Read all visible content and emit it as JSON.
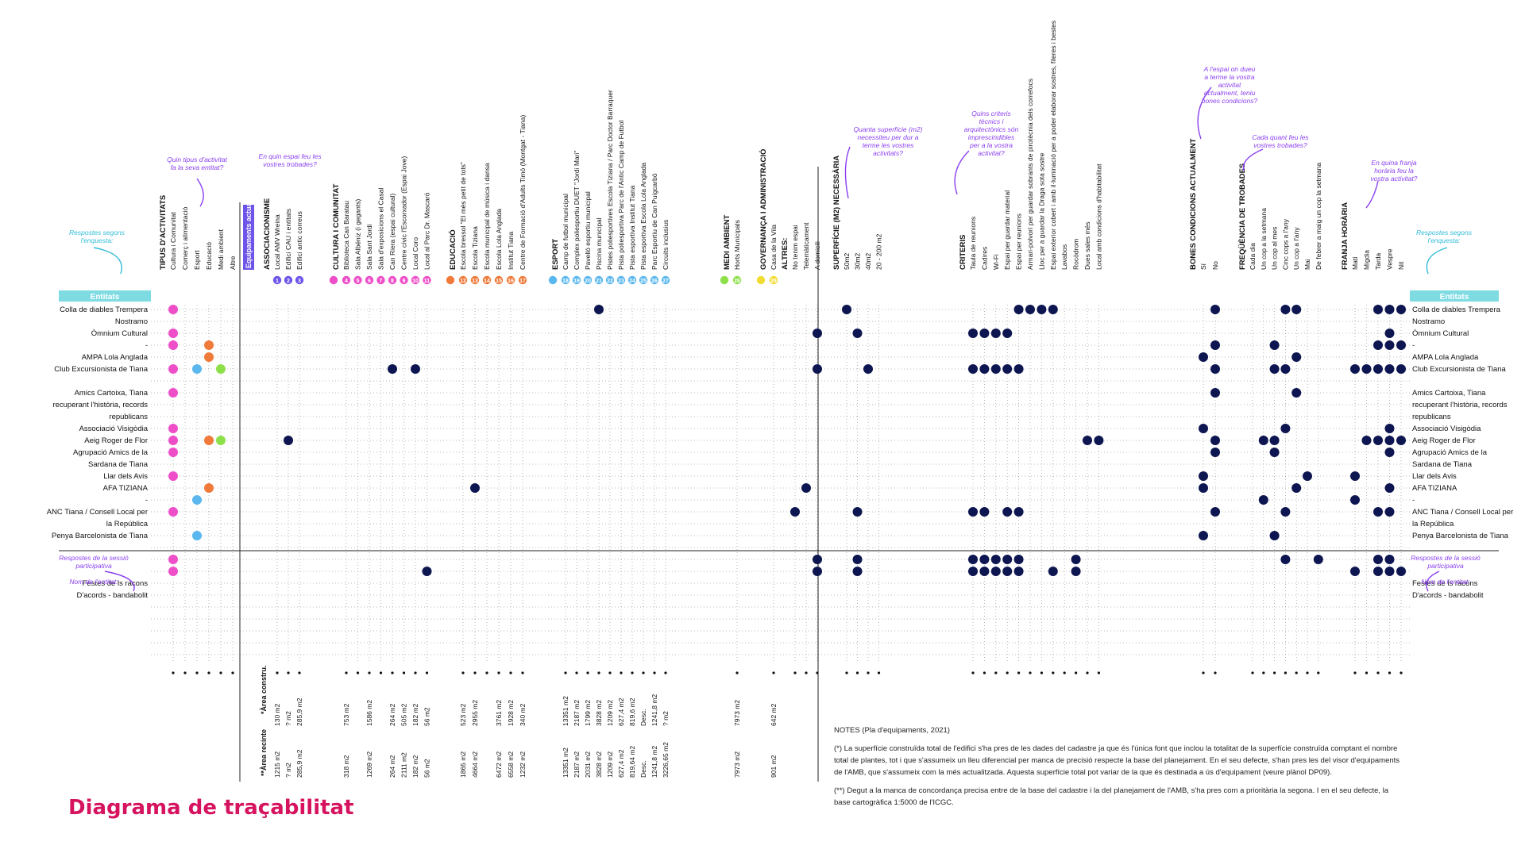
{
  "title": "Diagrama de traçabilitat",
  "colors": {
    "title": "#d6135f",
    "annotation": "#8a3ff0",
    "annotation_cyan": "#30bcd6",
    "entitats_band": "#7edbe2",
    "dot": "#0d1650",
    "pink": "#ee4fc8",
    "orange": "#f07a3a",
    "blue": "#5ab8ee",
    "green": "#8ee04a",
    "yellow": "#f2dc34",
    "purple": "#6e54e8"
  },
  "annotations": {
    "left_respostes": "Respostes segons l'enquesta:",
    "right_respostes": "Respostes segons l'enquesta:",
    "tipus_question": "Quin tipus d'activitat fa la seva entitat?",
    "espai_question": "En quin espai feu les vostres trobades?",
    "superficie_question": "Quanta superfície (m2) necessiteu per dur a terme les vostres activitats?",
    "criteris_question": "Quins criteris tècnics i arquitectònics són imprescindibles per a la vostra activitat?",
    "condicions_question": "A l'espai on dueu a terme la vostra activitat actualment, teniu bones condicions?",
    "frequencia_question": "Cada quant feu les vostres trobades?",
    "franja_question": "En quina franja horària feu la vostra activitat?",
    "left_sessio": "Respostes de la sessió participativa",
    "left_nom": "Nom de l'entitat:",
    "right_sessio": "Respostes de la sessió participativa",
    "right_nom": "Nom de l'entitat:",
    "equipaments_actuals": "Equipaments actuals",
    "entitats_label": "Entitats"
  },
  "entities_survey": [
    "Colla de diables Trempera",
    "Nostramo",
    "Òmnium Cultural",
    "-",
    "AMPA Lola Anglada",
    "Club Excursionista de Tiana",
    "",
    "Amics Cartoixa, Tiana",
    "recuperant l'història, records",
    "republicans",
    "Associació Visigòdia",
    "Aeig Roger de Flor",
    "Agrupació Amics de la",
    "Sardana de Tiana",
    "Llar dels Avis",
    "AFA TIZIANA",
    "-",
    "ANC Tiana / Consell Local per",
    "la República",
    "Penya Barcelonista de Tiana"
  ],
  "entities_survey_right": [
    "Colla de diables Trempera",
    "Nostramo",
    "Òmnium Cultural",
    "-",
    "AMPA Lola Anglada",
    "Club Excursionista de Tiana",
    "",
    "Amics Cartoixa, Tiana",
    "recuperant l'història, records",
    "republicans",
    "Associació Visigòdia",
    "Aeig Roger de Flor",
    "Agrupació Amics de la",
    "Sardana de Tiana",
    "Llar dels Avis",
    "AFA TIZIANA",
    "-",
    "ANC Tiana / Consell Local per",
    "la República",
    "Penya Barcelonista de Tiana"
  ],
  "entities_session": [
    "Festes de ls racons",
    "D'acords - bandabolit"
  ],
  "entities_session_right": [
    "Festes de ls racons",
    "D'acords - bandabolit"
  ],
  "groups": [
    {
      "key": "tipus",
      "header": "TIPUS D'ACTIVITATS",
      "color": "#ee4fc8",
      "items": [
        "Cultura i Comunitat",
        "Comerç i alimentació",
        "Esport",
        "Educació",
        "Medi ambient",
        "Altre"
      ]
    },
    {
      "key": "assoc",
      "header": "ASSOCIACIONISME",
      "color": "#6e54e8",
      "items": [
        "Local AMV Wreina",
        "Edifici CAU i entitats",
        "Edifici antic correus"
      ],
      "area": [
        "130 m2",
        "? m2",
        "285,9 m2"
      ],
      "recinte": [
        "1215 m2",
        "? m2",
        "285,9 m2"
      ]
    },
    {
      "key": "cultura",
      "header": "CULTURA I COMUNITAT",
      "color": "#ee4fc8",
      "items": [
        "Biblioteca Can Baratau",
        "Sala Albéniz (i gegants)",
        "Sala Sant Jordi",
        "Sala d'exposicions el Casal",
        "Can Riera (espai cultural)",
        "Centre cívic l'Escorxador (Espai Jove)",
        "Local Coro",
        "Local al Parc Dr. Mascaró"
      ],
      "area": [
        "753 m2",
        "",
        "1586 m2",
        "",
        "264 m2",
        "505 m2",
        "182 m2",
        "56 m2"
      ],
      "recinte": [
        "318 m2",
        "",
        "1269 m2",
        "",
        "264 m2",
        "2111 m2",
        "182 m2",
        "56 m2"
      ]
    },
    {
      "key": "educacio",
      "header": "EDUCACIÓ",
      "color": "#f07a3a",
      "items": [
        "Escola bressol \"El més petit de tots\"",
        "Escola Tiziana",
        "Escola municipal de música i dansa",
        "Escola Lola Anglada",
        "Institut Tiana",
        "Centre de Formació d'Adults Timó (Montgat - Tiana)"
      ],
      "area": [
        "523 m2",
        "2955 m2",
        "",
        "3761 m2",
        "1928 m2",
        "340 m2"
      ],
      "recinte": [
        "1865 m2",
        "4664 m2",
        "",
        "6472 m2",
        "6558 m2",
        "1232 m2"
      ]
    },
    {
      "key": "esport",
      "header": "ESPORT",
      "color": "#5ab8ee",
      "items": [
        "Camp de futbol municipal",
        "Complex poliesportiu DUET \"Jordi Mari\"",
        "Pavelló esportiu municipal",
        "Piscina municipal",
        "Pistes poliesportives Escola Tiziana / Parc Doctor Barraquer",
        "Pista poliesportiva Parc de l'Antic Camp de Futbol",
        "Pista esportiva Institut Tiana",
        "Pista esportiva Escola Lola Anglada",
        "Parc Esportiu de Can Puigcarbó",
        "Circuits inclusius"
      ],
      "area": [
        "13351 m2",
        "2187 m2",
        "1799 m2",
        "3828 m2",
        "1209 m2",
        "627,4 m2",
        "819,6 m2",
        "Desc.",
        "1241,8 m2",
        "? m2"
      ],
      "recinte": [
        "13351 m2",
        "2187 m2",
        "2031 m2",
        "3828 m2",
        "1209 m2",
        "627,4 m2",
        "819,64 m2",
        "Desc.",
        "1241,8 m2",
        "3226,65 m2"
      ]
    },
    {
      "key": "medi",
      "header": "MEDI AMBIENT",
      "color": "#8ee04a",
      "items": [
        "Horts Municipals"
      ],
      "area": [
        "7973 m2"
      ],
      "recinte": [
        "7973 m2"
      ]
    },
    {
      "key": "govern",
      "header": "GOVERNANÇA I ADMINISTRACIÓ",
      "color": "#f2dc34",
      "items": [
        "Casa de la Vila"
      ],
      "area": [
        "642 m2"
      ],
      "recinte": [
        "901 m2"
      ]
    },
    {
      "key": "altres",
      "header": "ALTRES:",
      "color": "#0d1650",
      "items": [
        "No tenim espai",
        "Telemàticament",
        "A domicili"
      ]
    },
    {
      "key": "superficie",
      "header": "SUPERFÍCIE (M2) NECESSÀRIA",
      "color": "#0d1650",
      "items": [
        "50m2",
        "30m2",
        "40m2",
        "20 - 200 m2"
      ]
    },
    {
      "key": "criteris",
      "header": "CRITERIS",
      "color": "#0d1650",
      "items": [
        "Taula de reunions",
        "Cadires",
        "Wi-Fi",
        "Espai per guardar material",
        "Espai per reunions",
        "Armari-polvorí per guardar sobrants de pirotècnia dels correfocs",
        "Lloc per a guardar la Draga sota sostre",
        "Espai exterior cobert i amb il·luminació per a poder elaborar sostres, fileres i bestes",
        "Lavabos",
        "Rocòdrom",
        "Dues sales més",
        "Local amb condicions d'habitabilitat"
      ]
    },
    {
      "key": "condicions",
      "header": "BONES CONDICIONS ACTUALMENT",
      "color": "#0d1650",
      "items": [
        "Sí",
        "No"
      ]
    },
    {
      "key": "frequencia",
      "header": "FREQÜÈNCIA DE TROBADES",
      "color": "#0d1650",
      "items": [
        "Cada dia",
        "Un cop a la setmana",
        "Un cop al mes",
        "Cinc cops a l'any",
        "Un cop a l'any",
        "Mai",
        "De febrer a maig un cop la setmana"
      ]
    },
    {
      "key": "franja",
      "header": "FRANJA HORÀRIA",
      "color": "#0d1650",
      "items": [
        "Matí",
        "Migdia",
        "Tarda",
        "Vespre",
        "Nit"
      ]
    }
  ],
  "column_numbers": {
    "assoc": [
      "1",
      "2",
      "3"
    ],
    "cultura": [
      "4",
      "5",
      "6",
      "7",
      "8",
      "9",
      "10",
      "11"
    ],
    "educacio": [
      "12",
      "13",
      "14",
      "15",
      "16",
      "17"
    ],
    "esport": [
      "18",
      "19",
      "20",
      "21",
      "22",
      "23",
      "24",
      "25",
      "26",
      "27"
    ],
    "medi": [
      "28"
    ],
    "govern": [
      "29"
    ]
  },
  "area_labels": {
    "area": "*Àrea constru.",
    "recinte": "**Àrea recinte"
  },
  "cells": {
    "tipus": [
      [
        0,
        0
      ],
      [
        2,
        0
      ],
      [
        3,
        0
      ],
      [
        3,
        3
      ],
      [
        4,
        3
      ],
      [
        5,
        0
      ],
      [
        5,
        2
      ],
      [
        5,
        4
      ],
      [
        7,
        0
      ],
      [
        10,
        0
      ],
      [
        11,
        0
      ],
      [
        11,
        3
      ],
      [
        11,
        4
      ],
      [
        12,
        0
      ],
      [
        14,
        0
      ],
      [
        15,
        3
      ],
      [
        16,
        2
      ],
      [
        17,
        0
      ],
      [
        19,
        2
      ],
      [
        21,
        0
      ],
      [
        22,
        0
      ]
    ],
    "assoc": [
      [
        11,
        1
      ]
    ],
    "cultura": [
      [
        5,
        4
      ],
      [
        5,
        6
      ],
      [
        22,
        7
      ]
    ],
    "educacio": [
      [
        15,
        1
      ]
    ],
    "esport": [
      [
        0,
        3
      ]
    ],
    "altres": [
      [
        2,
        2
      ],
      [
        5,
        2
      ],
      [
        15,
        1
      ],
      [
        17,
        0
      ],
      [
        21,
        2
      ],
      [
        22,
        2
      ]
    ],
    "superficie": [
      [
        0,
        0
      ],
      [
        2,
        1
      ],
      [
        5,
        2
      ],
      [
        17,
        1
      ],
      [
        21,
        1
      ],
      [
        22,
        1
      ]
    ],
    "criteris": [
      [
        0,
        4
      ],
      [
        0,
        5
      ],
      [
        0,
        6
      ],
      [
        0,
        7
      ],
      [
        2,
        0
      ],
      [
        2,
        1
      ],
      [
        2,
        2
      ],
      [
        2,
        3
      ],
      [
        5,
        0
      ],
      [
        5,
        1
      ],
      [
        5,
        2
      ],
      [
        5,
        3
      ],
      [
        5,
        4
      ],
      [
        11,
        10
      ],
      [
        11,
        11
      ],
      [
        17,
        0
      ],
      [
        17,
        1
      ],
      [
        17,
        3
      ],
      [
        17,
        4
      ],
      [
        21,
        0
      ],
      [
        21,
        1
      ],
      [
        21,
        2
      ],
      [
        21,
        3
      ],
      [
        21,
        4
      ],
      [
        21,
        9
      ],
      [
        22,
        0
      ],
      [
        22,
        1
      ],
      [
        22,
        2
      ],
      [
        22,
        3
      ],
      [
        22,
        4
      ],
      [
        22,
        7
      ],
      [
        22,
        9
      ]
    ],
    "condicions": [
      [
        0,
        1
      ],
      [
        3,
        1
      ],
      [
        4,
        0
      ],
      [
        5,
        1
      ],
      [
        7,
        1
      ],
      [
        10,
        0
      ],
      [
        11,
        1
      ],
      [
        12,
        1
      ],
      [
        14,
        0
      ],
      [
        15,
        0
      ],
      [
        17,
        1
      ],
      [
        19,
        0
      ]
    ],
    "frequencia": [
      [
        0,
        3
      ],
      [
        0,
        4
      ],
      [
        3,
        2
      ],
      [
        4,
        4
      ],
      [
        5,
        2
      ],
      [
        5,
        3
      ],
      [
        7,
        4
      ],
      [
        10,
        3
      ],
      [
        11,
        1
      ],
      [
        11,
        2
      ],
      [
        12,
        2
      ],
      [
        14,
        5
      ],
      [
        15,
        4
      ],
      [
        16,
        1
      ],
      [
        17,
        3
      ],
      [
        19,
        2
      ],
      [
        21,
        3
      ],
      [
        21,
        6
      ]
    ],
    "franja": [
      [
        0,
        2
      ],
      [
        0,
        3
      ],
      [
        0,
        4
      ],
      [
        2,
        3
      ],
      [
        3,
        2
      ],
      [
        3,
        3
      ],
      [
        3,
        4
      ],
      [
        5,
        0
      ],
      [
        5,
        1
      ],
      [
        5,
        2
      ],
      [
        5,
        3
      ],
      [
        5,
        4
      ],
      [
        10,
        3
      ],
      [
        11,
        1
      ],
      [
        11,
        2
      ],
      [
        11,
        3
      ],
      [
        11,
        4
      ],
      [
        12,
        3
      ],
      [
        14,
        0
      ],
      [
        15,
        3
      ],
      [
        16,
        0
      ],
      [
        17,
        2
      ],
      [
        17,
        3
      ],
      [
        21,
        2
      ],
      [
        21,
        3
      ],
      [
        22,
        0
      ],
      [
        22,
        2
      ],
      [
        22,
        3
      ],
      [
        22,
        4
      ]
    ]
  },
  "notes": {
    "title": "NOTES (Pla d'equipaments, 2021)",
    "note1": "(*) La superfície construïda total de l'edifici s'ha pres de les dades del cadastre ja que és l'única font que inclou la totalitat de la superfície construïda comptant el nombre total de plantes, tot i que s'assumeix un lleu diferencial per manca de precisió respecte la base del planejament. En el seu defecte, s'han pres les del visor d'equipaments de l'AMB, que s'assumeix com la més actualitzada. Aquesta superfície total pot variar de la que és destinada a ús d'equipament (veure plànol DP09).",
    "note2": "(**) Degut a la manca de concordança precisa entre de la base del cadastre i la del planejament de l'AMB, s'ha pres com a prioritària la segona. I en el seu defecte, la base cartogràfica 1:5000 de l'ICGC."
  }
}
